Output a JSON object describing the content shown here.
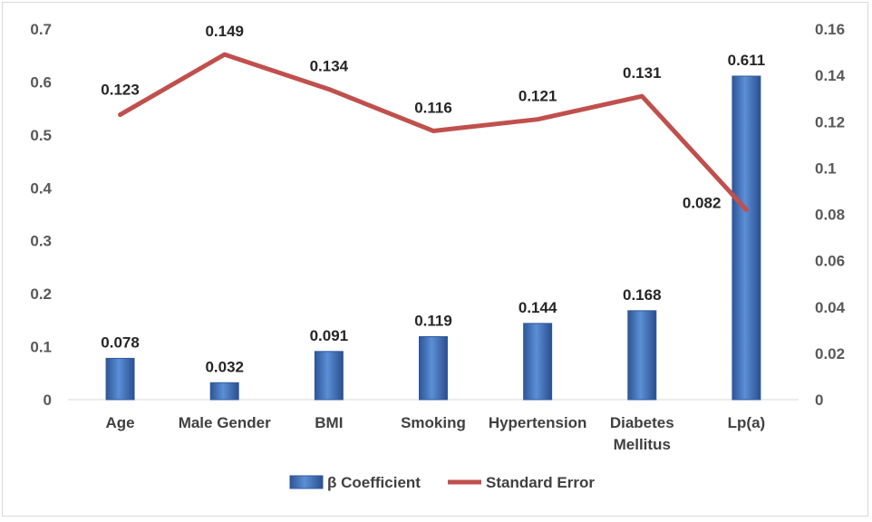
{
  "chart_data": {
    "type": "bar",
    "categories": [
      "Age",
      "Male Gender",
      "BMI",
      "Smoking",
      "Hypertension",
      "Diabetes Mellitus",
      "Lp(a)"
    ],
    "series": [
      {
        "name": "β Coefficient",
        "type": "bar",
        "axis": "left",
        "color": "#4472c4",
        "values": [
          0.078,
          0.032,
          0.091,
          0.119,
          0.144,
          0.168,
          0.611
        ],
        "labels": [
          "0.078",
          "0.032",
          "0.091",
          "0.119",
          "0.144",
          "0.168",
          "0.611"
        ]
      },
      {
        "name": "Standard Error",
        "type": "line",
        "axis": "right",
        "color": "#c0504d",
        "values": [
          0.123,
          0.149,
          0.134,
          0.116,
          0.121,
          0.131,
          0.082
        ],
        "labels": [
          "0.123",
          "0.149",
          "0.134",
          "0.116",
          "0.121",
          "0.131",
          "0.082"
        ]
      }
    ],
    "y_left": {
      "lim": [
        0,
        0.7
      ],
      "ticks": [
        "0",
        "0.1",
        "0.2",
        "0.3",
        "0.4",
        "0.5",
        "0.6",
        "0.7"
      ]
    },
    "y_right": {
      "lim": [
        0,
        0.16
      ],
      "ticks": [
        "0",
        "0.02",
        "0.04",
        "0.06",
        "0.08",
        "0.1",
        "0.12",
        "0.14",
        "0.16"
      ]
    },
    "title": "",
    "xlabel": "",
    "ylabel": "",
    "grid": false,
    "legend_position": "bottom"
  }
}
